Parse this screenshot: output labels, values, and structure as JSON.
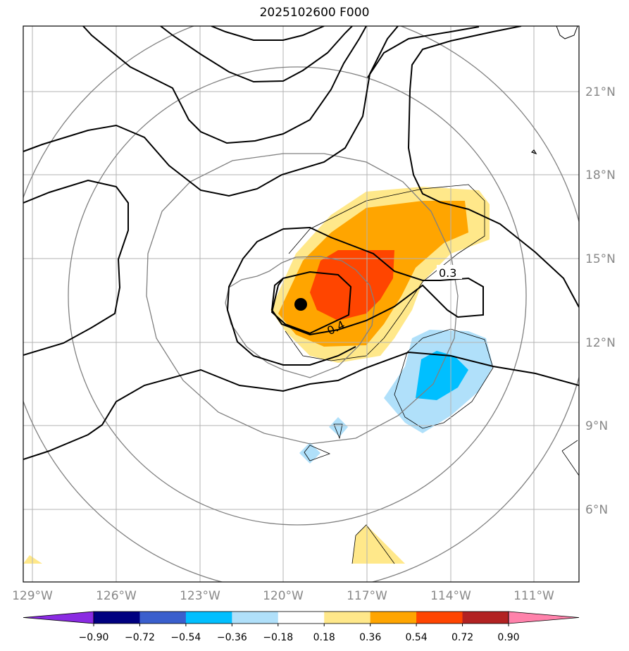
{
  "title": "2025102600 F000",
  "longitude_labels": [
    "129°W",
    "126°W",
    "123°W",
    "120°W",
    "117°W",
    "114°W",
    "111°W"
  ],
  "latitude_labels": [
    "21°N",
    "18°N",
    "15°N",
    "12°N",
    "9°N",
    "6°N"
  ],
  "contour_labels": [
    "0.3",
    "0.4"
  ],
  "colorbar": {
    "ticks": [
      "−0.90",
      "−0.72",
      "−0.54",
      "−0.36",
      "−0.18",
      "0.18",
      "0.36",
      "0.54",
      "0.72",
      "0.90"
    ],
    "colors": [
      "#8a2be2",
      "#000080",
      "#3a5fcd",
      "#00bfff",
      "#b0e0fa",
      "#ffffff",
      "#ffe88a",
      "#ffa500",
      "#ff4500",
      "#b22222",
      "#ff82ab"
    ]
  },
  "storm_center": {
    "lon": -119.3,
    "lat": 13.4
  }
}
